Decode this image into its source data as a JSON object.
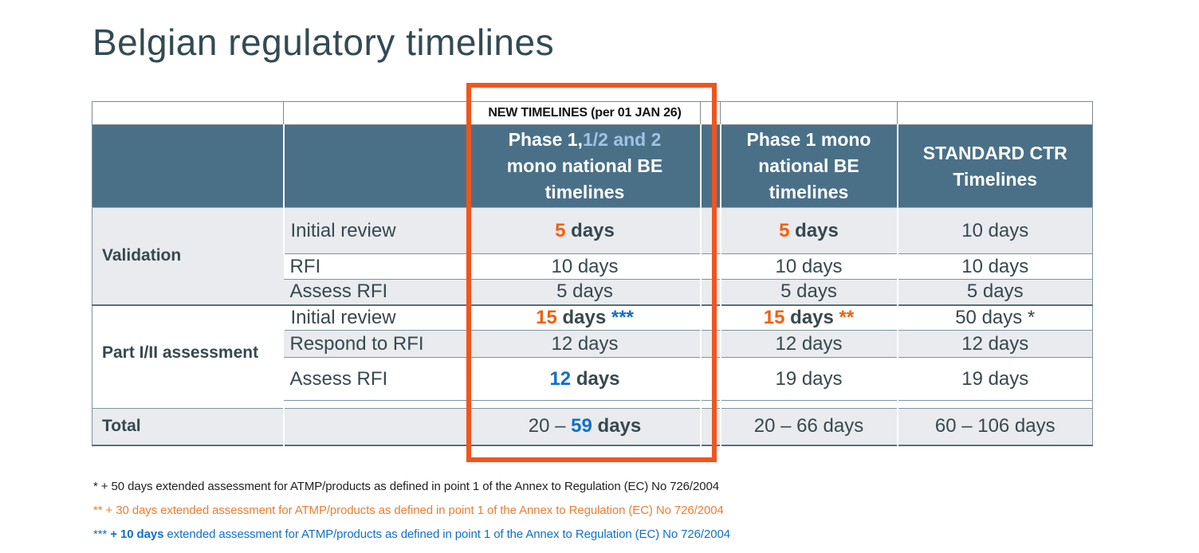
{
  "slide": {
    "title": "Belgian regulatory timelines"
  },
  "table": {
    "banner": "NEW TIMELINES (per 01 JAN 26)",
    "header": {
      "col_new": {
        "part1": "Phase 1,",
        "part2": "1/2 and 2",
        "part3": "mono national BE timelines"
      },
      "col_mono": "Phase 1 mono national BE timelines",
      "col_ctr": "STANDARD CTR Timelines"
    },
    "validation": {
      "group_label": "Validation",
      "initial_review": {
        "label": "Initial review",
        "new": {
          "num": "5",
          "unit": " days"
        },
        "mono": {
          "num": "5",
          "unit": " days"
        },
        "ctr": "10 days"
      },
      "rfi": {
        "label": "RFI",
        "new": "10 days",
        "mono": "10 days",
        "ctr": "10 days"
      },
      "assess_rfi": {
        "label": "Assess RFI",
        "new": "5 days",
        "mono": "5 days",
        "ctr": "5 days"
      }
    },
    "part_assessment": {
      "group_label": "Part I/II assessment",
      "initial_review": {
        "label": "Initial review",
        "new": {
          "num": "15",
          "unit": " days ",
          "note": "***"
        },
        "mono": {
          "num": "15",
          "unit": " days ",
          "note": "**"
        },
        "ctr": "50 days *"
      },
      "respond_rfi": {
        "label": "Respond to RFI",
        "new": "12 days",
        "mono": "12 days",
        "ctr": "12 days"
      },
      "assess_rfi": {
        "label": "Assess RFI",
        "new": {
          "num": "12",
          "unit": " days"
        },
        "mono": "19 days",
        "ctr": "19 days"
      }
    },
    "total": {
      "label": "Total",
      "new": {
        "prefix": "20 – ",
        "num": "59",
        "unit": " days"
      },
      "mono": "20 – 66 days",
      "ctr": "60 – 106 days"
    }
  },
  "footnotes": {
    "fn1": {
      "text": "* + 50 days extended assessment for ATMP/products as defined in point 1 of the Annex to Regulation (EC) No 726/2004"
    },
    "fn2": {
      "text": "** + 30 days extended assessment for ATMP/products as defined in point 1 of the Annex to Regulation (EC) No 726/2004"
    },
    "fn3": {
      "marker": "*** ",
      "strong": "+ 10 days",
      "rest": " extended assessment for ATMP/products as defined in point 1 of the Annex to Regulation (EC) No 726/2004"
    }
  },
  "colors": {
    "header_bg": "#4a7088",
    "row_alt": "#e9ebee",
    "accent_orange": "#f2600d",
    "accent_blue": "#1070c8",
    "light_blue": "#9dc3e6",
    "highlight_box": "#f0551e",
    "fn_orange": "#ed7d31"
  }
}
